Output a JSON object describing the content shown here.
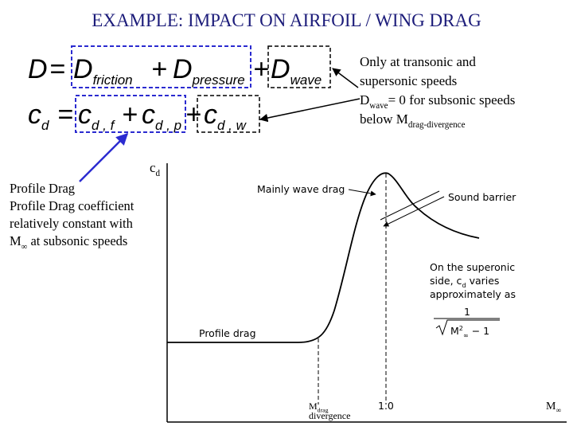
{
  "title": "EXAMPLE: IMPACT ON AIRFOIL / WING DRAG",
  "equations": [
    {
      "terms": [
        {
          "text": "D"
        },
        {
          "text": "="
        },
        {
          "text": "D",
          "sub": "friction"
        },
        {
          "text": "+"
        },
        {
          "text": "D",
          "sub": "pressure"
        },
        {
          "text": "+"
        },
        {
          "text": "D",
          "sub": "wave"
        }
      ]
    },
    {
      "terms": [
        {
          "text": "c",
          "sub": "d"
        },
        {
          "text": "="
        },
        {
          "text": "c",
          "sub": "d , f"
        },
        {
          "text": "+"
        },
        {
          "text": "c",
          "sub": "d , p"
        },
        {
          "text": "+"
        },
        {
          "text": "c",
          "sub": "d , w"
        }
      ]
    }
  ],
  "wave_note": {
    "lines": [
      [
        {
          "text": "Only at transonic and"
        }
      ],
      [
        {
          "text": "supersonic speeds"
        }
      ],
      [
        {
          "text": "D"
        },
        {
          "sub": "wave"
        },
        {
          "text": "= 0 for subsonic speeds"
        }
      ],
      [
        {
          "text": "below M"
        },
        {
          "sub": "drag-divergence"
        }
      ]
    ]
  },
  "profile_note": {
    "lines": [
      [
        {
          "text": "Profile Drag"
        }
      ],
      [
        {
          "text": "Profile Drag coefficient"
        }
      ],
      [
        {
          "text": "relatively constant with"
        }
      ],
      [
        {
          "text": "M"
        },
        {
          "sub": "∞"
        },
        {
          "text": " at subsonic speeds"
        }
      ]
    ]
  },
  "plot": {
    "y_label": [
      [
        {
          "text": "c"
        },
        {
          "sub": "d"
        }
      ]
    ],
    "wave_label": [
      [
        {
          "text": "Mainly wave drag"
        }
      ]
    ],
    "barrier_label": [
      [
        {
          "text": "Sound barrier"
        }
      ]
    ],
    "supersonic_label": [
      [
        {
          "text": "On the superonic"
        }
      ],
      [
        {
          "text": "side, c"
        },
        {
          "sub": "d"
        },
        {
          "text": " varies"
        }
      ],
      [
        {
          "text": "approximately as"
        }
      ]
    ],
    "fraction_numerator": [
      [
        {
          "text": "1"
        }
      ]
    ],
    "fraction_denominator": [
      [
        {
          "text": "M"
        },
        {
          "sup": "2"
        },
        {
          "sub": "∞"
        },
        {
          "text": " − 1"
        }
      ]
    ],
    "profile_label": [
      [
        {
          "text": "Profile drag"
        }
      ]
    ],
    "divergence_label": [
      [
        {
          "text": "M"
        },
        {
          "sub": "drag"
        }
      ],
      [
        {
          "text": "divergence"
        }
      ]
    ],
    "mach_one_label": [
      [
        {
          "text": "1.0"
        }
      ]
    ],
    "x_label": [
      [
        {
          "text": "M"
        },
        {
          "sub": "∞"
        }
      ]
    ]
  }
}
